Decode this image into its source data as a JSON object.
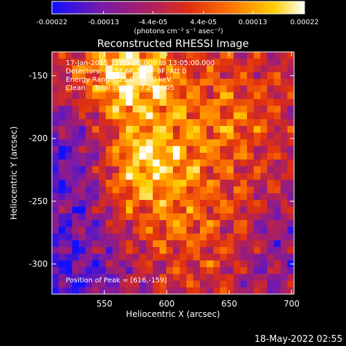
{
  "chart_data": {
    "type": "heatmap",
    "title": "Reconstructed RHESSI Image",
    "xlabel": "Heliocentric X (arcsec)",
    "ylabel": "Heliocentric Y (arcsec)",
    "xlim": [
      508,
      702
    ],
    "ylim": [
      -324,
      -131
    ],
    "x_ticks": [
      550,
      600,
      650,
      700
    ],
    "y_ticks": [
      -150,
      -200,
      -250,
      -300
    ],
    "colorbar": {
      "range": [
        -0.00022,
        0.00022
      ],
      "ticks": [
        {
          "value": -0.00022,
          "label": "-0.00022"
        },
        {
          "value": -0.00013,
          "label": "-0.00013"
        },
        {
          "value": -4.4e-05,
          "label": "-4.4e-05"
        },
        {
          "value": 4.4e-05,
          "label": "4.4e-05"
        },
        {
          "value": 0.00013,
          "label": "0.00013"
        },
        {
          "value": 0.00022,
          "label": "0.00022"
        }
      ],
      "unit_label": "(photons cm⁻² s⁻¹ asec⁻²)",
      "colors": [
        "#1010ff",
        "#7a1aa8",
        "#b0205a",
        "#e03010",
        "#ff7a00",
        "#ffd000",
        "#ffffff"
      ]
    },
    "annotations": {
      "time_range": "17-Jan-2015 12:55:00.000 to 13:05:00.000",
      "detectors": "Detectors: 3F 5F 6F 7F 8F 9F, Att 0",
      "energy": "Energy Range: 25.0 - 50.0 keV",
      "algorithm": "Clean    Total counts: 7.29e+05",
      "peak": "Position of Peak = [616,-159]"
    },
    "peak": {
      "x": 616,
      "y": -159
    },
    "timestamp": "18-May-2022 02:55"
  }
}
